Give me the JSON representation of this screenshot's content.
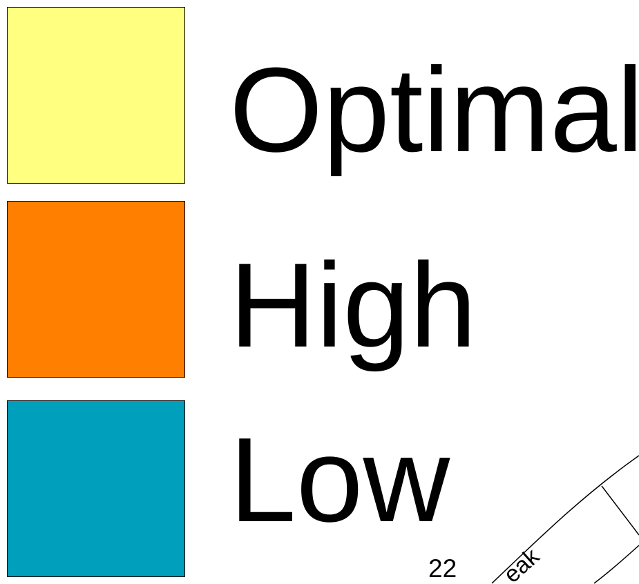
{
  "legend": {
    "items": [
      {
        "label": "Optimal",
        "color": "#ffff80"
      },
      {
        "label": "High",
        "color": "#ff8000"
      },
      {
        "label": "Low",
        "color": "#009fbc"
      }
    ]
  },
  "map": {
    "lot_number": "22",
    "street_label_fragment": "eak"
  }
}
